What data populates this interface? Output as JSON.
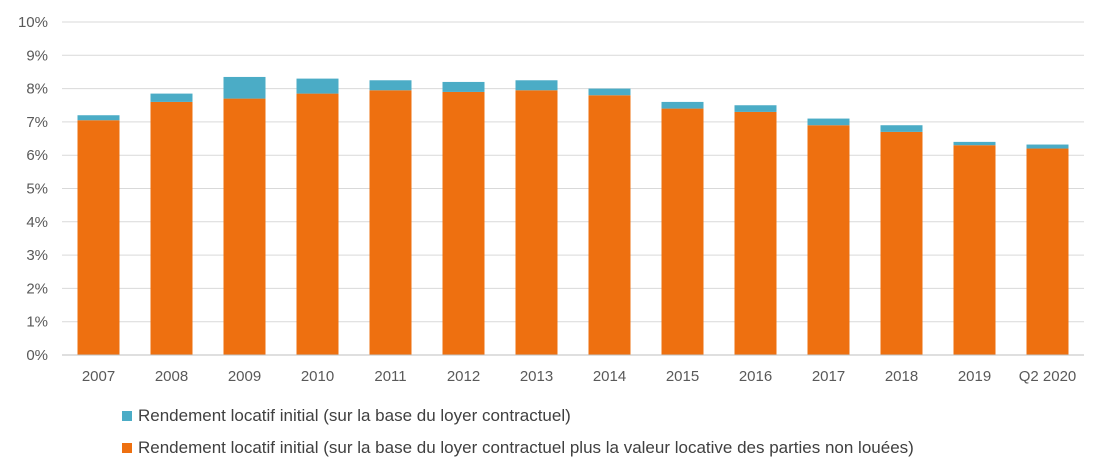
{
  "chart_data": {
    "type": "bar",
    "stacked": true,
    "categories": [
      "2007",
      "2008",
      "2009",
      "2010",
      "2011",
      "2012",
      "2013",
      "2014",
      "2015",
      "2016",
      "2017",
      "2018",
      "2019",
      "Q2 2020"
    ],
    "y_ticks": [
      "0%",
      "1%",
      "2%",
      "3%",
      "4%",
      "5%",
      "6%",
      "7%",
      "8%",
      "9%",
      "10%"
    ],
    "ylim": [
      0,
      10
    ],
    "y_unit": "%",
    "grid": true,
    "legend_position": "bottom-left",
    "series": [
      {
        "name": "Rendement locatif initial (sur la base du loyer contractuel plus la valeur locative des parties non louées)",
        "color": "#ee7010",
        "values": [
          7.05,
          7.6,
          7.7,
          7.85,
          7.95,
          7.9,
          7.95,
          7.8,
          7.4,
          7.3,
          6.9,
          6.7,
          6.3,
          6.2
        ]
      },
      {
        "name": "Rendement locatif initial (sur la base du loyer contractuel)",
        "color": "#4bacc6",
        "values": [
          0.15,
          0.25,
          0.65,
          0.45,
          0.3,
          0.3,
          0.3,
          0.2,
          0.2,
          0.2,
          0.2,
          0.2,
          0.1,
          0.12
        ]
      }
    ]
  },
  "legend": [
    {
      "label": "Rendement locatif initial (sur la base du loyer contractuel)",
      "color": "#4bacc6"
    },
    {
      "label": "Rendement locatif initial (sur la base du loyer contractuel plus la valeur locative des parties non louées)",
      "color": "#ee7010"
    }
  ]
}
